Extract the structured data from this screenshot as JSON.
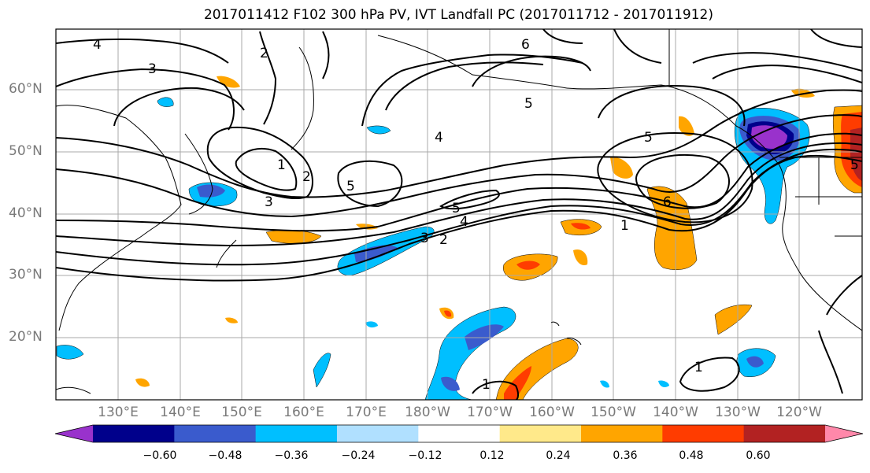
{
  "title": "2017011412 F102 300 hPa PV, IVT Landfall PC (2017011712 - 2017011912)",
  "lat_labels": [
    "60°N",
    "50°N",
    "40°N",
    "30°N",
    "20°N"
  ],
  "lon_labels": [
    "130°E",
    "140°E",
    "150°E",
    "160°E",
    "170°E",
    "180°W",
    "170°W",
    "160°W",
    "150°W",
    "140°W",
    "130°W",
    "120°W"
  ],
  "colorbar": {
    "colors": [
      "#9932cc",
      "#00008b",
      "#3a5bcd",
      "#00bfff",
      "#b0e0ff",
      "#ffffff",
      "#ffe98a",
      "#ffa500",
      "#ff3c00",
      "#b22222",
      "#ff88aa"
    ],
    "tick_labels": [
      "−0.60",
      "−0.48",
      "−0.36",
      "−0.24",
      "−0.12",
      "0.12",
      "0.24",
      "0.36",
      "0.48",
      "0.60"
    ]
  },
  "contour_labels": [
    "4",
    "3",
    "2",
    "6",
    "5",
    "4",
    "5",
    "1",
    "2",
    "3",
    "5",
    "5",
    "4",
    "3",
    "2",
    "5",
    "6",
    "1",
    "1",
    "1"
  ]
}
